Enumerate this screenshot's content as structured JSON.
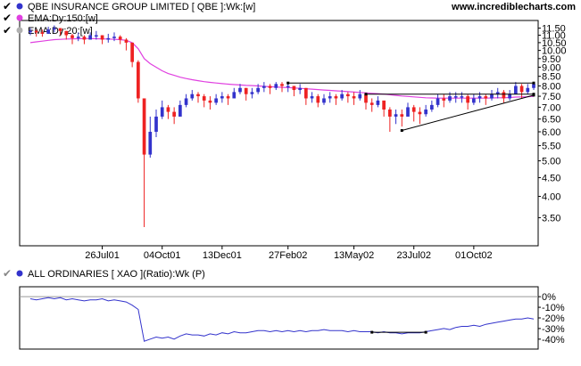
{
  "header": {
    "watermark": "www.incrediblecharts.com"
  },
  "legend": [
    {
      "label": "QBE INSURANCE GROUP LIMITED [ QBE ]:Wk:[w]",
      "color": "#3333cc",
      "checked": true
    },
    {
      "label": "EMA:Dy:150:[w]",
      "color": "#e040e0",
      "checked": true
    },
    {
      "label": "EMA:Dy:20:[w]",
      "color": "#b0b0b0",
      "checked": true
    }
  ],
  "indicator_legend": {
    "label": "ALL ORDINARIES [ XAO ](Ratio):Wk (P)",
    "color": "#3333cc",
    "checked": true
  },
  "colors": {
    "up": "#3333cc",
    "down": "#ee2222",
    "ema150": "#e040e0",
    "ema20": "#b0b0b0",
    "trend": "#000000",
    "ratio": "#3333cc"
  },
  "chart_data": [
    {
      "type": "candlestick",
      "scale": "log",
      "ylim": [
        3.0,
        11.8
      ],
      "ytick_labels": [
        "11.50",
        "11.00",
        "10.50",
        "10.00",
        "9.50",
        "9.00",
        "8.50",
        "8.00",
        "7.50",
        "7.00",
        "6.50",
        "6.00",
        "5.50",
        "5.00",
        "4.50",
        "4.00",
        "3.50"
      ],
      "ytick_values": [
        11.5,
        11.0,
        10.5,
        10.0,
        9.5,
        9.0,
        8.5,
        8.0,
        7.5,
        7.0,
        6.5,
        6.0,
        5.5,
        5.0,
        4.5,
        4.0,
        3.5
      ],
      "xtick_labels": [
        "26Jul01",
        "04Oct01",
        "13Dec01",
        "27Feb02",
        "13May02",
        "23Jul02",
        "01Oct02"
      ],
      "xtick_index": [
        12,
        22,
        32,
        43,
        54,
        64,
        74
      ],
      "close": [
        11.3,
        11.2,
        11.1,
        11.4,
        11.5,
        11.3,
        11.0,
        10.8,
        10.9,
        10.7,
        11.0,
        11.0,
        10.7,
        10.8,
        10.9,
        10.7,
        10.5,
        9.3,
        7.4,
        5.2,
        6.0,
        6.6,
        7.0,
        6.8,
        6.6,
        7.1,
        7.4,
        7.6,
        7.5,
        7.3,
        7.2,
        7.4,
        7.5,
        7.4,
        7.7,
        7.9,
        7.6,
        7.7,
        7.9,
        8.0,
        7.9,
        8.1,
        8.0,
        8.0,
        7.8,
        7.9,
        7.4,
        7.5,
        7.2,
        7.4,
        7.5,
        7.4,
        7.6,
        7.5,
        7.4,
        7.6,
        7.2,
        7.1,
        7.3,
        6.9,
        6.6,
        6.7,
        6.6,
        7.0,
        6.8,
        6.7,
        6.9,
        7.1,
        7.4,
        7.3,
        7.5,
        7.5,
        7.5,
        7.2,
        7.4,
        7.5,
        7.4,
        7.6,
        7.7,
        7.4,
        7.6,
        8.0,
        7.7,
        7.9,
        8.1
      ],
      "high": [
        11.5,
        11.4,
        11.4,
        11.6,
        11.7,
        11.5,
        11.3,
        11.1,
        11.2,
        11.0,
        11.2,
        11.3,
        11.0,
        11.1,
        11.2,
        11.0,
        10.8,
        10.5,
        9.4,
        7.4,
        6.6,
        6.9,
        7.3,
        7.1,
        7.0,
        7.3,
        7.6,
        7.8,
        7.7,
        7.6,
        7.5,
        7.6,
        7.7,
        7.6,
        7.9,
        8.1,
        7.9,
        7.9,
        8.1,
        8.2,
        8.1,
        8.2,
        8.2,
        8.2,
        8.0,
        8.1,
        7.9,
        7.7,
        7.6,
        7.6,
        7.7,
        7.6,
        7.8,
        7.7,
        7.7,
        7.8,
        7.6,
        7.4,
        7.5,
        7.3,
        7.0,
        6.9,
        6.9,
        7.2,
        7.1,
        7.0,
        7.1,
        7.3,
        7.6,
        7.6,
        7.7,
        7.7,
        7.7,
        7.6,
        7.6,
        7.7,
        7.6,
        7.8,
        7.9,
        7.8,
        7.8,
        8.2,
        8.1,
        8.1,
        8.2
      ],
      "low": [
        11.0,
        10.9,
        10.9,
        11.1,
        11.2,
        11.0,
        10.7,
        10.4,
        10.6,
        10.4,
        10.7,
        10.7,
        10.4,
        10.5,
        10.6,
        10.4,
        10.0,
        9.0,
        7.2,
        3.3,
        5.1,
        5.8,
        6.5,
        6.5,
        6.3,
        6.6,
        7.0,
        7.3,
        7.2,
        7.0,
        6.9,
        7.1,
        7.2,
        7.1,
        7.4,
        7.6,
        7.3,
        7.4,
        7.6,
        7.7,
        7.6,
        7.8,
        7.7,
        7.7,
        7.5,
        7.6,
        7.1,
        7.2,
        7.0,
        7.1,
        7.2,
        7.1,
        7.3,
        7.2,
        7.1,
        7.3,
        6.9,
        6.8,
        7.0,
        6.6,
        6.0,
        6.3,
        6.2,
        6.6,
        6.4,
        6.3,
        6.6,
        6.8,
        7.0,
        7.0,
        7.2,
        7.2,
        7.2,
        6.9,
        7.1,
        7.2,
        7.1,
        7.3,
        7.4,
        7.2,
        7.3,
        7.6,
        7.4,
        7.6,
        7.8
      ],
      "ema150": [
        10.5,
        10.55,
        10.6,
        10.65,
        10.7,
        10.72,
        10.74,
        10.75,
        10.76,
        10.77,
        10.77,
        10.76,
        10.75,
        10.74,
        10.72,
        10.7,
        10.65,
        10.5,
        10.1,
        9.5,
        9.2,
        9.0,
        8.8,
        8.65,
        8.55,
        8.45,
        8.38,
        8.32,
        8.27,
        8.22,
        8.18,
        8.15,
        8.12,
        8.09,
        8.07,
        8.05,
        8.03,
        8.02,
        8.0,
        7.98,
        7.96,
        7.95,
        7.93,
        7.92,
        7.9,
        7.88,
        7.86,
        7.84,
        7.82,
        7.8,
        7.78,
        7.76,
        7.74,
        7.72,
        7.7,
        7.68,
        7.66,
        7.64,
        7.62,
        7.6,
        7.57,
        7.54,
        7.51,
        7.49,
        7.47,
        7.45,
        7.43,
        7.42,
        7.41,
        7.41,
        7.41,
        7.41,
        7.41,
        7.41,
        7.41,
        7.41,
        7.41,
        7.42,
        7.43,
        7.43,
        7.44,
        7.46,
        7.47,
        7.48,
        7.5
      ],
      "trendlines": [
        {
          "from": [
            43,
            8.15
          ],
          "to": [
            84,
            8.15
          ]
        },
        {
          "from": [
            56,
            7.6
          ],
          "to": [
            84,
            7.6
          ]
        },
        {
          "from": [
            62,
            6.05
          ],
          "to": [
            84,
            7.55
          ]
        }
      ]
    },
    {
      "type": "line",
      "ylim": [
        -46,
        6
      ],
      "ytick_labels": [
        "0%",
        "-10%",
        "-20%",
        "-30%",
        "-40%"
      ],
      "ytick_values": [
        0,
        -10,
        -20,
        -30,
        -40
      ],
      "values": [
        -2,
        -3,
        -2,
        -1,
        -2,
        -1,
        -3,
        -2,
        -3,
        -4,
        -3,
        -3,
        -2,
        -4,
        -3,
        -4,
        -5,
        -8,
        -12,
        -42,
        -40,
        -38,
        -39,
        -38,
        -40,
        -37,
        -35,
        -36,
        -36,
        -37,
        -35,
        -36,
        -34,
        -35,
        -33,
        -34,
        -34,
        -33,
        -32,
        -32,
        -33,
        -32,
        -33,
        -32,
        -33,
        -32,
        -33,
        -32,
        -32,
        -31,
        -32,
        -32,
        -32,
        -33,
        -32,
        -33,
        -33,
        -33,
        -34,
        -33,
        -34,
        -34,
        -35,
        -34,
        -34,
        -34,
        -33,
        -32,
        -31,
        -30,
        -31,
        -29,
        -28,
        -28,
        -27,
        -28,
        -26,
        -25,
        -24,
        -23,
        -22,
        -21,
        -21,
        -20,
        -21
      ],
      "trendlines": [
        {
          "from": [
            57,
            -33.5
          ],
          "to": [
            66,
            -33.5
          ]
        }
      ]
    }
  ]
}
